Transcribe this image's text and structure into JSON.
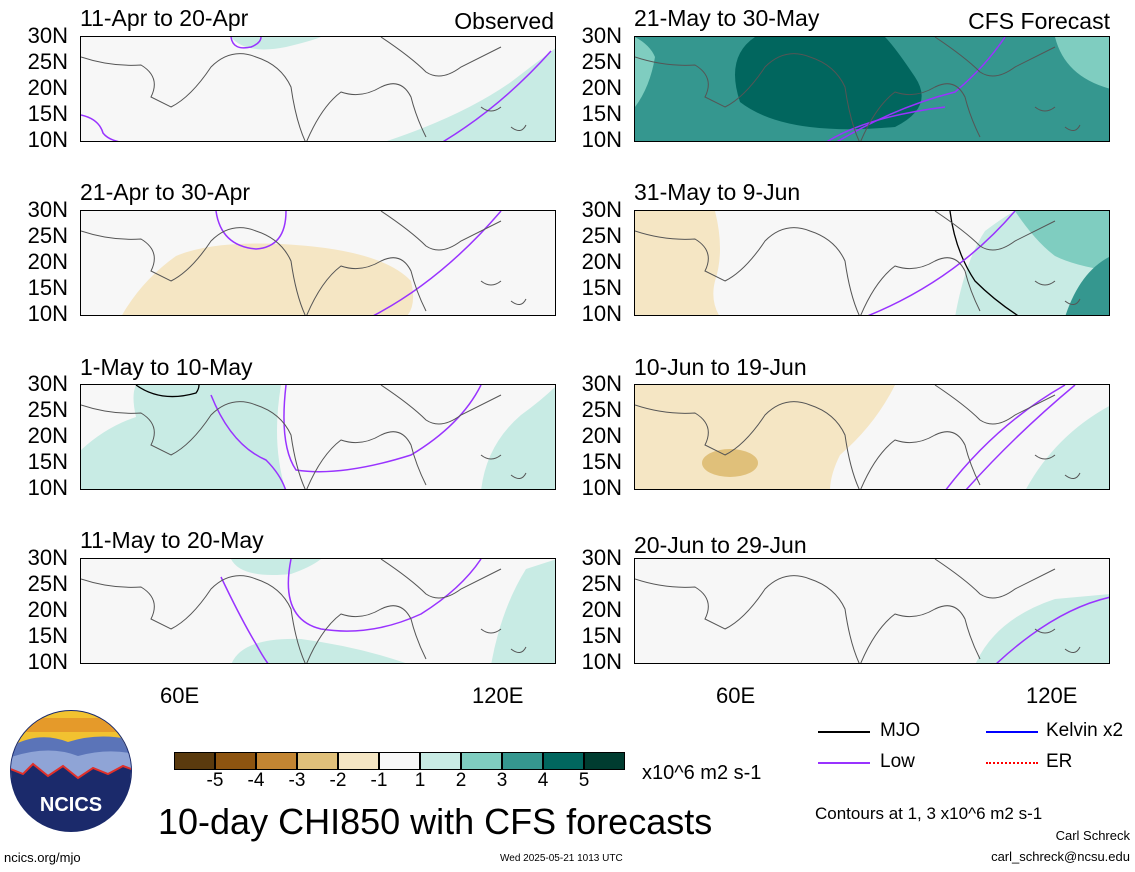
{
  "panels": [
    {
      "title": "11-Apr to 20-Apr",
      "label": "Observed"
    },
    {
      "title": "21-Apr to 30-Apr",
      "label": ""
    },
    {
      "title": "1-May to 10-May",
      "label": ""
    },
    {
      "title": "11-May to 20-May",
      "label": ""
    },
    {
      "title": "21-May to 30-May",
      "label": "CFS Forecast"
    },
    {
      "title": "31-May to 9-Jun",
      "label": ""
    },
    {
      "title": "10-Jun to 19-Jun",
      "label": ""
    },
    {
      "title": "20-Jun to 29-Jun",
      "label": ""
    }
  ],
  "y_ticks": [
    "30N",
    "25N",
    "20N",
    "15N",
    "10N"
  ],
  "x_ticks": [
    "60E",
    "120E"
  ],
  "colorbar": {
    "labels": [
      "-5",
      "-4",
      "-3",
      "-2",
      "-1",
      "1",
      "2",
      "3",
      "4",
      "5"
    ],
    "colors": [
      "#5a3a0e",
      "#8d5410",
      "#c38532",
      "#e0c07a",
      "#f5e6c4",
      "#f7f7f7",
      "#c8ebe4",
      "#7fcdc0",
      "#35978f",
      "#01665e",
      "#003c30"
    ],
    "units": "x10^6 m2 s-1"
  },
  "legend": {
    "mjo": "MJO",
    "low": "Low",
    "kelvin": "Kelvin x2",
    "er": "ER",
    "colors": {
      "mjo": "#000000",
      "low": "#9933ff",
      "kelvin": "#0000ff",
      "er": "#ff0000"
    }
  },
  "main_title": "10-day CHI850 with CFS forecasts",
  "contours_note": "Contours at 1, 3 x10^6 m2 s-1",
  "author": "Carl Schreck",
  "email": "carl_schreck@ncsu.edu",
  "site": "ncics.org/mjo",
  "timestamp": "Wed 2025-05-21 1013 UTC",
  "logo_text": "NCICS"
}
